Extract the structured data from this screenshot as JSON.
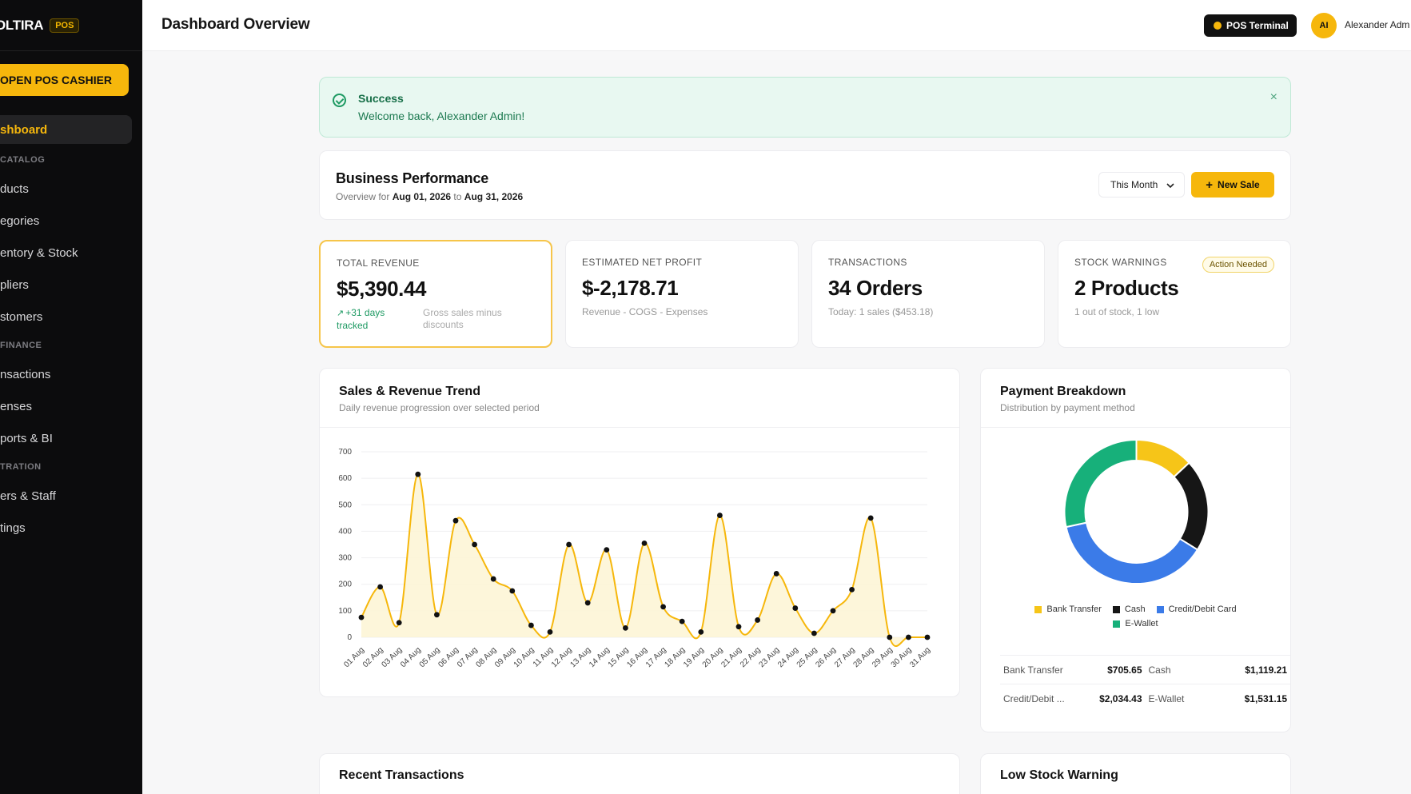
{
  "sidebar": {
    "brand": "OLTIRA",
    "brand_badge": "POS",
    "pos_button": "OPEN POS CASHIER",
    "nav": [
      {
        "type": "item",
        "label": "shboard",
        "active": true,
        "name": "sidebar-item-dashboard"
      },
      {
        "type": "section",
        "label": "CATALOG",
        "name": "sidebar-section-catalog"
      },
      {
        "type": "item",
        "label": "ducts",
        "name": "sidebar-item-products"
      },
      {
        "type": "item",
        "label": "egories",
        "name": "sidebar-item-categories"
      },
      {
        "type": "item",
        "label": "entory & Stock",
        "name": "sidebar-item-inventory"
      },
      {
        "type": "item",
        "label": "pliers",
        "name": "sidebar-item-suppliers"
      },
      {
        "type": "item",
        "label": "stomers",
        "name": "sidebar-item-customers"
      },
      {
        "type": "section",
        "label": "FINANCE",
        "name": "sidebar-section-finance"
      },
      {
        "type": "item",
        "label": "nsactions",
        "name": "sidebar-item-transactions"
      },
      {
        "type": "item",
        "label": "enses",
        "name": "sidebar-item-expenses"
      },
      {
        "type": "item",
        "label": "ports & BI",
        "name": "sidebar-item-reports"
      },
      {
        "type": "section",
        "label": "TRATION",
        "name": "sidebar-section-administration"
      },
      {
        "type": "item",
        "label": "ers & Staff",
        "name": "sidebar-item-users-staff"
      },
      {
        "type": "item",
        "label": "tings",
        "name": "sidebar-item-settings"
      }
    ]
  },
  "topbar": {
    "title": "Dashboard Overview",
    "terminal_label": "POS Terminal",
    "avatar_initials": "AI",
    "user_name": "Alexander Adm"
  },
  "alert": {
    "title": "Success",
    "message": "Welcome back, Alexander Admin!",
    "close_icon": "×"
  },
  "business": {
    "title": "Business Performance",
    "sub_prefix": "Overview for",
    "date_from": "Aug 01, 2026",
    "sub_mid": "to",
    "date_to": "Aug 31, 2026",
    "period_select": "This Month",
    "new_sale_label": "New Sale"
  },
  "stats": {
    "revenue": {
      "label": "TOTAL REVENUE",
      "value": "$5,390.44",
      "trend": "+31 days tracked",
      "note": "Gross sales minus discounts"
    },
    "profit": {
      "label": "ESTIMATED NET PROFIT",
      "value": "$-2,178.71",
      "note": "Revenue - COGS - Expenses"
    },
    "transactions": {
      "label": "TRANSACTIONS",
      "value": "34 Orders",
      "note": "Today: 1 sales ($453.18)"
    },
    "stock": {
      "label": "STOCK WARNINGS",
      "value": "2 Products",
      "note": "1 out of stock, 1 low",
      "badge": "Action Needed"
    }
  },
  "sales_chart": {
    "title": "Sales & Revenue Trend",
    "subtitle": "Daily revenue progression over selected period"
  },
  "payment": {
    "title": "Payment Breakdown",
    "subtitle": "Distribution by payment method",
    "rows": [
      [
        {
          "label": "Bank Transfer",
          "value": "$705.65"
        },
        {
          "label": "Cash",
          "value": "$1,119.21"
        }
      ],
      [
        {
          "label": "Credit/Debit ...",
          "value": "$2,034.43"
        },
        {
          "label": "E-Wallet",
          "value": "$1,531.15"
        }
      ]
    ]
  },
  "recent": {
    "title": "Recent Transactions"
  },
  "low_stock": {
    "title": "Low Stock Warning"
  },
  "colors": {
    "accent": "#f6b70c",
    "bank_transfer": "#f6c518",
    "cash": "#161616",
    "card": "#3b7be8",
    "ewallet": "#17b07a"
  },
  "chart_data": [
    {
      "type": "area",
      "title": "Sales & Revenue Trend",
      "categories": [
        "01 Aug",
        "02 Aug",
        "03 Aug",
        "04 Aug",
        "05 Aug",
        "06 Aug",
        "07 Aug",
        "08 Aug",
        "09 Aug",
        "10 Aug",
        "11 Aug",
        "12 Aug",
        "13 Aug",
        "14 Aug",
        "15 Aug",
        "16 Aug",
        "17 Aug",
        "18 Aug",
        "19 Aug",
        "20 Aug",
        "21 Aug",
        "22 Aug",
        "23 Aug",
        "24 Aug",
        "25 Aug",
        "26 Aug",
        "27 Aug",
        "28 Aug",
        "29 Aug",
        "30 Aug",
        "31 Aug"
      ],
      "values": [
        75,
        190,
        55,
        615,
        85,
        440,
        350,
        220,
        175,
        45,
        20,
        350,
        130,
        330,
        35,
        355,
        115,
        60,
        20,
        460,
        40,
        65,
        240,
        110,
        15,
        100,
        180,
        450,
        0,
        0,
        0
      ],
      "yticks": [
        0,
        100,
        200,
        300,
        400,
        500,
        600,
        700
      ],
      "ylim": [
        0,
        700
      ]
    },
    {
      "type": "pie",
      "title": "Payment Breakdown",
      "categories": [
        "Bank Transfer",
        "Cash",
        "Credit/Debit Card",
        "E-Wallet"
      ],
      "values": [
        705.65,
        1119.21,
        2034.43,
        1531.15
      ],
      "legend": "bottom"
    }
  ]
}
